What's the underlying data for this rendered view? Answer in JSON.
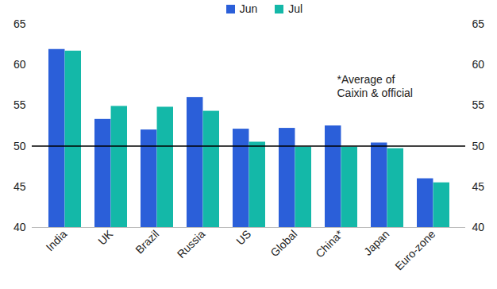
{
  "chart_data": {
    "type": "bar",
    "categories": [
      "India",
      "UK",
      "Brazil",
      "Russia",
      "US",
      "Global",
      "China*",
      "Japan",
      "Euro-zone"
    ],
    "series": [
      {
        "name": "Jun",
        "color": "#2b5fd9",
        "values": [
          61.9,
          53.3,
          52.0,
          56.0,
          52.1,
          52.2,
          52.5,
          50.4,
          46.0
        ]
      },
      {
        "name": "Jul",
        "color": "#14b8a8",
        "values": [
          61.7,
          54.9,
          54.8,
          54.3,
          50.5,
          49.9,
          49.9,
          49.7,
          45.5
        ]
      }
    ],
    "ylim": [
      40,
      65
    ],
    "yticks": [
      40,
      45,
      50,
      55,
      60,
      65
    ],
    "reference_line": 50,
    "annotation": "*Average of\nCaixin & official",
    "legend": "top"
  }
}
